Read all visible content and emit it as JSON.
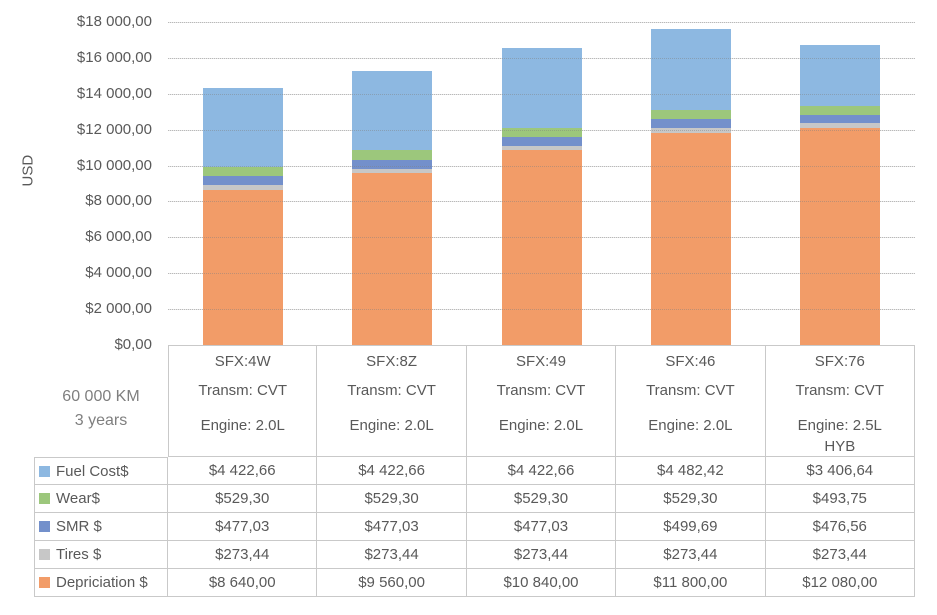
{
  "chart_data": {
    "type": "bar",
    "stacked": true,
    "title": "",
    "xlabel": "",
    "ylabel": "USD",
    "ylim": [
      0,
      18000
    ],
    "ytick_interval": 2000,
    "ytick_labels": [
      "$0,00",
      "$2 000,00",
      "$4 000,00",
      "$6 000,00",
      "$8 000,00",
      "$10 000,00",
      "$12 000,00",
      "$14 000,00",
      "$16 000,00",
      "$18 000,00"
    ],
    "grid": true,
    "legend_position": "table-row-headers",
    "categories": [
      "SFX:4W",
      "SFX:8Z",
      "SFX:49",
      "SFX:46",
      "SFX:76"
    ],
    "series": [
      {
        "name": "Fuel Cost$",
        "color": "#8DB8E1",
        "values": [
          4422.66,
          4422.66,
          4422.66,
          4482.42,
          3406.64
        ]
      },
      {
        "name": "Wear$",
        "color": "#9CC77C",
        "values": [
          529.3,
          529.3,
          529.3,
          529.3,
          493.75
        ]
      },
      {
        "name": "SMR $",
        "color": "#7390CB",
        "values": [
          477.03,
          477.03,
          477.03,
          499.69,
          476.56
        ]
      },
      {
        "name": "Tires $",
        "color": "#C7C7C7",
        "values": [
          273.44,
          273.44,
          273.44,
          273.44,
          273.44
        ]
      },
      {
        "name": "Depriciation $",
        "color": "#F29C68",
        "values": [
          8640.0,
          9560.0,
          10840.0,
          11800.0,
          12080.0
        ]
      }
    ],
    "stack_order_bottom_to_top": [
      "Depriciation $",
      "Tires $",
      "SMR $",
      "Wear$",
      "Fuel Cost$"
    ],
    "bar_totals": [
      14342.43,
      15262.43,
      16542.43,
      17584.85,
      16730.39
    ]
  },
  "axis": {
    "ylabel": "USD"
  },
  "table": {
    "corner": {
      "line1": "60 000 KM",
      "line2": "3 years"
    },
    "column_headers": [
      {
        "sfx": "SFX:4W",
        "transm": "Transm: CVT",
        "engine": "Engine: 2.0L"
      },
      {
        "sfx": "SFX:8Z",
        "transm": "Transm: CVT",
        "engine": "Engine: 2.0L"
      },
      {
        "sfx": "SFX:49",
        "transm": "Transm: CVT",
        "engine": "Engine: 2.0L"
      },
      {
        "sfx": "SFX:46",
        "transm": "Transm: CVT",
        "engine": "Engine: 2.0L"
      },
      {
        "sfx": "SFX:76",
        "transm": "Transm: CVT",
        "engine": "Engine: 2.5L HYB"
      }
    ],
    "rows": [
      {
        "label": "Fuel Cost$",
        "swatch_color": "#8DB8E1",
        "values": [
          "$4 422,66",
          "$4 422,66",
          "$4 422,66",
          "$4 482,42",
          "$3 406,64"
        ]
      },
      {
        "label": "Wear$",
        "swatch_color": "#9CC77C",
        "values": [
          "$529,30",
          "$529,30",
          "$529,30",
          "$529,30",
          "$493,75"
        ]
      },
      {
        "label": "SMR $",
        "swatch_color": "#7390CB",
        "values": [
          "$477,03",
          "$477,03",
          "$477,03",
          "$499,69",
          "$476,56"
        ]
      },
      {
        "label": "Tires $",
        "swatch_color": "#C7C7C7",
        "values": [
          "$273,44",
          "$273,44",
          "$273,44",
          "$273,44",
          "$273,44"
        ]
      },
      {
        "label": "Depriciation $",
        "swatch_color": "#F29C68",
        "values": [
          "$8 640,00",
          "$9 560,00",
          "$10 840,00",
          "$11 800,00",
          "$12 080,00"
        ]
      }
    ]
  },
  "colors": {
    "text": "#595959",
    "muted_text": "#7F7F7F",
    "gridline": "#E7E7E7",
    "table_border": "#C9C9C9",
    "axis_line": "#D9D9D9"
  }
}
